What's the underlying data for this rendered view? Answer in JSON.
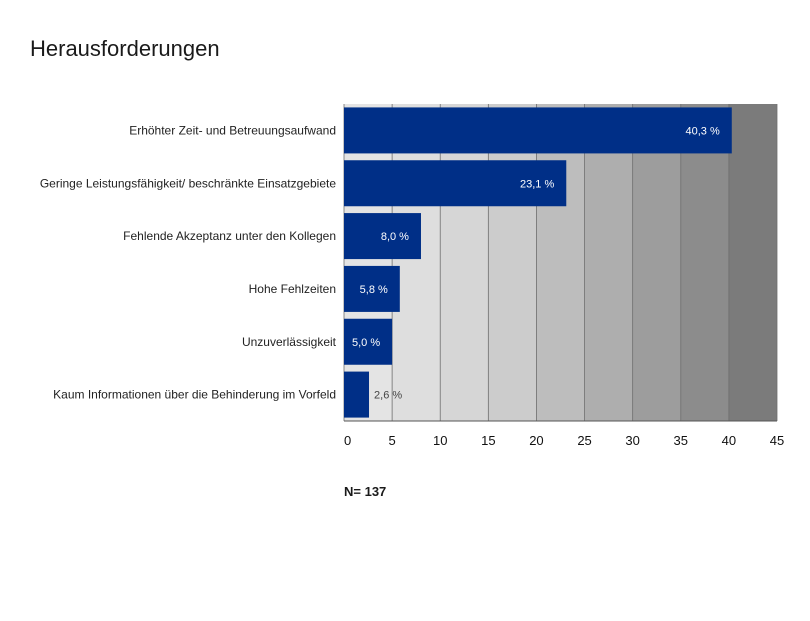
{
  "chart_data": {
    "type": "bar",
    "orientation": "horizontal",
    "title": "Herausforderungen",
    "categories": [
      "Erhöhter Zeit- und Betreuungsaufwand",
      "Geringe Leistungsfähigkeit/ beschränkte Einsatzgebiete",
      "Fehlende Akzeptanz unter den Kollegen",
      "Hohe Fehlzeiten",
      "Unzuverlässigkeit",
      "Kaum Informationen über die Behinderung im Vorfeld"
    ],
    "values": [
      40.3,
      23.1,
      8.0,
      5.8,
      5.0,
      2.6
    ],
    "value_labels": [
      "40,3 %",
      "23,1 %",
      "8,0 %",
      "5,8 %",
      "5,0 %",
      "2,6 %"
    ],
    "xlim": [
      0,
      45
    ],
    "xticks": [
      0,
      5,
      10,
      15,
      20,
      25,
      30,
      35,
      40,
      45
    ],
    "bar_color": "#002f87",
    "background": "gradient light gray to dark gray by band",
    "grid": true
  },
  "note": "N= 137"
}
